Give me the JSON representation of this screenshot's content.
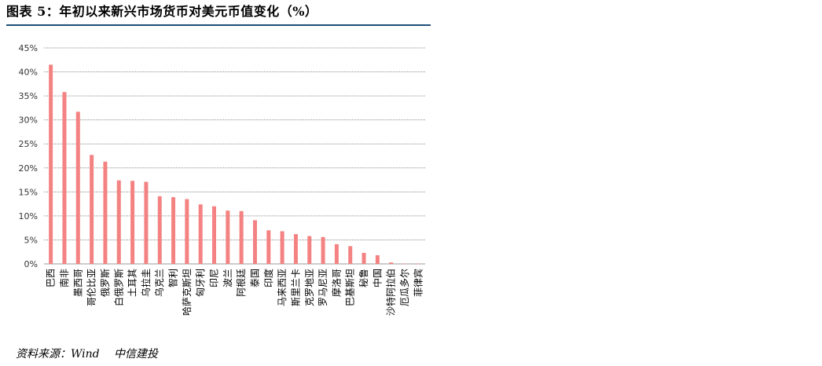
{
  "header": {
    "title": "图表 5：年初以来新兴市场货币对美元币值变化（%）"
  },
  "footer": {
    "source": "资料来源：Wind　 中信建投"
  },
  "chart_data": {
    "type": "bar",
    "title": "",
    "xlabel": "",
    "ylabel": "",
    "ylim": [
      0,
      45
    ],
    "yticks": [
      "0%",
      "5%",
      "10%",
      "15%",
      "20%",
      "25%",
      "30%",
      "35%",
      "40%",
      "45%"
    ],
    "grid": true,
    "bar_color": "#f48282",
    "categories": [
      "巴西",
      "南非",
      "墨西哥",
      "哥伦比亚",
      "俄罗斯",
      "白俄罗斯",
      "土耳其",
      "乌拉圭",
      "乌克兰",
      "智利",
      "哈萨克斯坦",
      "匈牙利",
      "印尼",
      "波兰",
      "阿根廷",
      "泰国",
      "印度",
      "马来西亚",
      "斯里兰卡",
      "克罗地亚",
      "罗马尼亚",
      "摩洛哥",
      "巴基斯坦",
      "秘鲁",
      "中国",
      "沙特阿拉伯",
      "厄瓜多尔",
      "菲律宾"
    ],
    "values": [
      41.5,
      35.8,
      31.7,
      22.7,
      21.3,
      17.4,
      17.3,
      17.1,
      14.1,
      13.9,
      13.5,
      12.4,
      12.0,
      11.1,
      11.0,
      9.1,
      7.0,
      6.8,
      6.2,
      5.8,
      5.6,
      4.1,
      3.7,
      2.3,
      1.8,
      0.3,
      0.05,
      0.05
    ]
  }
}
